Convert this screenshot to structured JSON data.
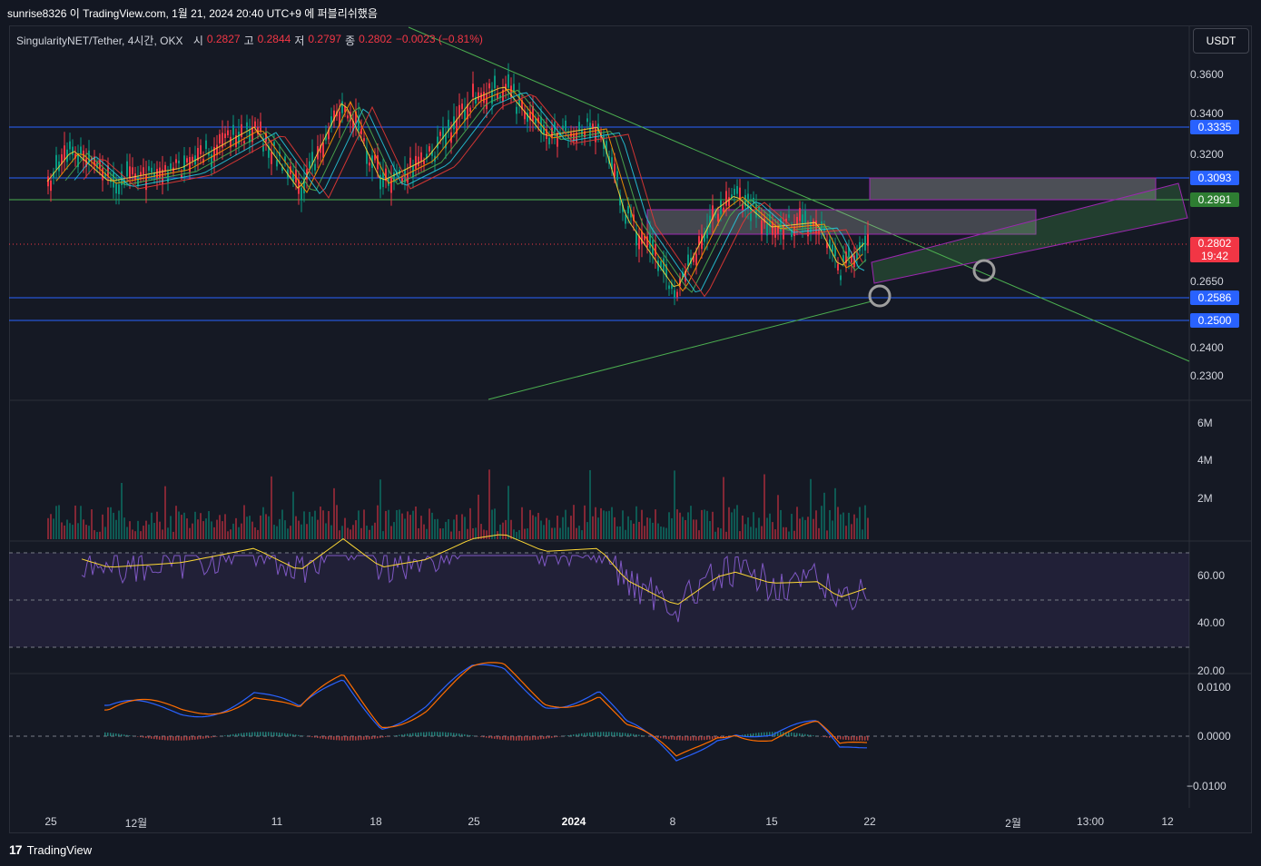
{
  "header": {
    "caption": "sunrise8326 이 TradingView.com, 1월 21, 2024 20:40 UTC+9 에 퍼블리쉬했음"
  },
  "legend": {
    "symbol": "SingularityNET/Tether, 4시간, OKX",
    "open_label": "시",
    "open": "0.2827",
    "high_label": "고",
    "high": "0.2844",
    "low_label": "저",
    "low": "0.2797",
    "close_label": "종",
    "close": "0.2802",
    "change": "−0.0023 (−0.81%)"
  },
  "currency_button": "USDT",
  "price_axis": {
    "ticks": [
      "0.3600",
      "0.3400",
      "0.3200",
      "0.2650",
      "0.2400",
      "0.2300"
    ],
    "badges": {
      "level_3335": "0.3335",
      "level_3093": "0.3093",
      "level_2991": "0.2991",
      "current_price": "0.2802",
      "countdown": "19:42",
      "level_2586": "0.2586",
      "level_2500": "0.2500"
    }
  },
  "volume_axis": {
    "ticks": [
      "6M",
      "4M",
      "2M"
    ]
  },
  "rsi_axis": {
    "ticks": [
      "60.00",
      "40.00",
      "20.00"
    ]
  },
  "macd_axis": {
    "ticks": [
      "0.0100",
      "0.0000",
      "−0.0100"
    ]
  },
  "time_axis": {
    "labels": [
      "25",
      "12월",
      "11",
      "18",
      "25",
      "2024",
      "8",
      "15",
      "22",
      "2월",
      "13:00",
      "12"
    ]
  },
  "footer": {
    "brand": "TradingView",
    "logo_text": "17"
  },
  "colors": {
    "background": "#131722",
    "up": "#089981",
    "down": "#f23645",
    "horizontal_line": "#2962ff",
    "support_line": "#4caf50",
    "rsi_line": "#7e57c2",
    "rsi_ma": "#fdd835"
  }
}
